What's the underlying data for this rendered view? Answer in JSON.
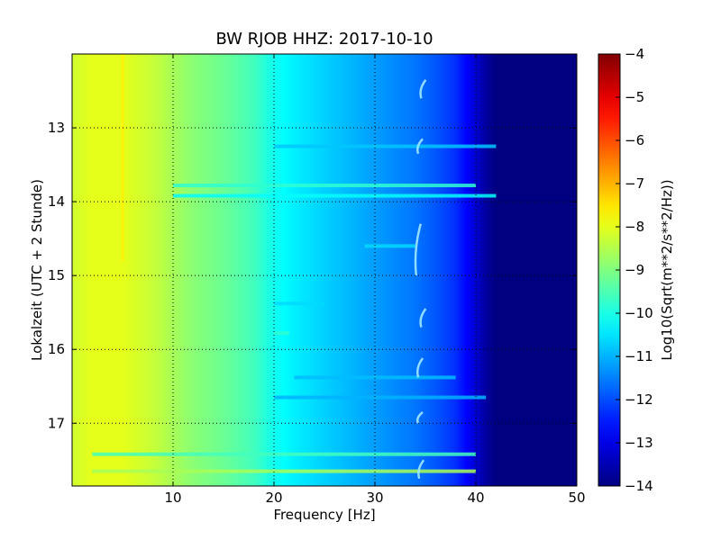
{
  "chart_data": {
    "type": "heatmap",
    "title": "BW RJOB HHZ: 2017-10-10",
    "xlabel": "Frequency [Hz]",
    "ylabel": "Lokalzeit (UTC + 2 Stunde)",
    "xlim": [
      0,
      50
    ],
    "ylim": [
      12.0,
      17.85
    ],
    "y_inverted": true,
    "x_ticks": [
      10,
      20,
      30,
      40,
      50
    ],
    "y_ticks": [
      13,
      14,
      15,
      16,
      17
    ],
    "x_tick_labels": [
      "10",
      "20",
      "30",
      "40",
      "50"
    ],
    "y_tick_labels": [
      "13",
      "14",
      "15",
      "16",
      "17"
    ],
    "grid": true,
    "colormap": "jet",
    "colorbar": {
      "label": "Log10(Sqrt(m**2/s**2/Hz))",
      "range": [
        -14,
        -4
      ],
      "ticks": [
        -4,
        -5,
        -6,
        -7,
        -8,
        -9,
        -10,
        -11,
        -12,
        -13,
        -14
      ],
      "tick_labels": [
        "−4",
        "−5",
        "−6",
        "−7",
        "−8",
        "−9",
        "−10",
        "−11",
        "−12",
        "−13",
        "−14"
      ]
    },
    "spectral_profile": {
      "frequency_hz": [
        0,
        2,
        5,
        8,
        10,
        12,
        15,
        18,
        20,
        22,
        25,
        28,
        30,
        32,
        34,
        36,
        38,
        39,
        40,
        41,
        42,
        45,
        50
      ],
      "log10_amplitude": [
        -8.2,
        -8.0,
        -8.0,
        -8.3,
        -8.6,
        -8.9,
        -9.2,
        -9.6,
        -10.1,
        -10.4,
        -10.7,
        -11.0,
        -11.2,
        -11.4,
        -11.6,
        -11.9,
        -12.3,
        -12.7,
        -13.2,
        -13.7,
        -14,
        -14,
        -14
      ]
    },
    "horizontal_bands": [
      {
        "time": 13.25,
        "f_min": 20,
        "f_max": 42,
        "level": -10.8
      },
      {
        "time": 13.78,
        "f_min": 10,
        "f_max": 40,
        "level": -9.8
      },
      {
        "time": 13.92,
        "f_min": 10,
        "f_max": 42,
        "level": -10.2
      },
      {
        "time": 14.6,
        "f_min": 29,
        "f_max": 34,
        "level": -10.6
      },
      {
        "time": 15.38,
        "f_min": 20,
        "f_max": 25,
        "level": -10.6
      },
      {
        "time": 15.78,
        "f_min": 20,
        "f_max": 21.5,
        "level": -9.8
      },
      {
        "time": 16.38,
        "f_min": 22,
        "f_max": 38,
        "level": -10.9
      },
      {
        "time": 16.65,
        "f_min": 20,
        "f_max": 41,
        "level": -11.0
      },
      {
        "time": 17.42,
        "f_min": 2,
        "f_max": 40,
        "level": -9.6
      },
      {
        "time": 17.65,
        "f_min": 2,
        "f_max": 40,
        "level": -8.6
      }
    ],
    "vertical_features": [
      {
        "frequency": 5.0,
        "t_min": 12.0,
        "t_max": 14.8,
        "level": -7.6
      }
    ],
    "curved_features": [
      {
        "frequency": 34.5,
        "t_min": 12.35,
        "t_max": 12.6
      },
      {
        "frequency": 34.2,
        "t_min": 13.15,
        "t_max": 13.35
      },
      {
        "frequency": 34.0,
        "t_min": 14.3,
        "t_max": 15.0
      },
      {
        "frequency": 34.5,
        "t_min": 15.45,
        "t_max": 15.7
      },
      {
        "frequency": 34.2,
        "t_min": 16.12,
        "t_max": 16.38
      },
      {
        "frequency": 34.2,
        "t_min": 16.85,
        "t_max": 17.0
      },
      {
        "frequency": 34.3,
        "t_min": 17.5,
        "t_max": 17.75
      }
    ]
  }
}
